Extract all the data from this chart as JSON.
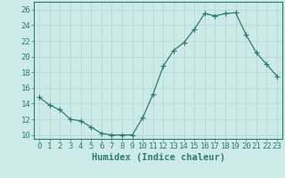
{
  "x": [
    0,
    1,
    2,
    3,
    4,
    5,
    6,
    7,
    8,
    9,
    10,
    11,
    12,
    13,
    14,
    15,
    16,
    17,
    18,
    19,
    20,
    21,
    22,
    23
  ],
  "y": [
    14.8,
    13.8,
    13.2,
    12.0,
    11.8,
    11.0,
    10.2,
    10.0,
    10.0,
    10.0,
    12.2,
    15.2,
    18.8,
    20.8,
    21.8,
    23.5,
    25.5,
    25.2,
    25.5,
    25.6,
    22.8,
    20.5,
    19.0,
    17.5
  ],
  "xlim": [
    -0.5,
    23.5
  ],
  "ylim": [
    9.5,
    27
  ],
  "yticks": [
    10,
    12,
    14,
    16,
    18,
    20,
    22,
    24,
    26
  ],
  "xticks": [
    0,
    1,
    2,
    3,
    4,
    5,
    6,
    7,
    8,
    9,
    10,
    11,
    12,
    13,
    14,
    15,
    16,
    17,
    18,
    19,
    20,
    21,
    22,
    23
  ],
  "xlabel": "Humidex (Indice chaleur)",
  "line_color": "#2e7d6e",
  "marker": "+",
  "marker_size": 4,
  "background_color": "#cceae7",
  "grid_color": "#b8d8d4",
  "spine_color": "#2e7d6e",
  "tick_color": "#2e7d6e",
  "label_color": "#2e7d6e",
  "font_size": 6.5,
  "xlabel_fontsize": 7.5
}
